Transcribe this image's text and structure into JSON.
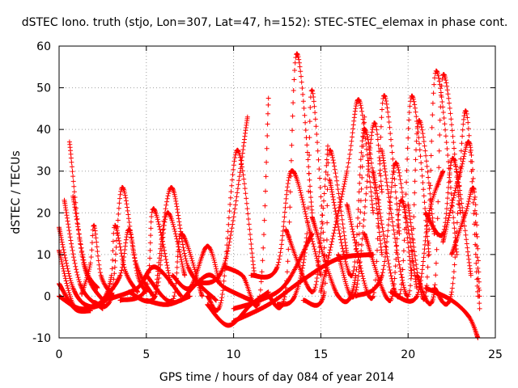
{
  "chart_data": {
    "type": "scatter",
    "title": "dSTEC Iono. truth (stjo, Lon=307, Lat=47, h=152): STEC-STEC_elemax in phase cont.",
    "xlabel": "GPS time / hours of day 084 of year 2014",
    "ylabel": "dSTEC  / TECUs",
    "xlim": [
      0,
      25
    ],
    "ylim": [
      -10,
      60
    ],
    "xticks": [
      0,
      5,
      10,
      15,
      20,
      25
    ],
    "yticks": [
      -10,
      0,
      10,
      20,
      30,
      40,
      50,
      60
    ],
    "grid": true,
    "marker": "+",
    "color": "#ff0000",
    "arcs": [
      {
        "x": [
          0.0,
          0.8,
          1.8,
          3.0
        ],
        "y": [
          16.5,
          2.0,
          -2.5,
          0.0
        ]
      },
      {
        "x": [
          0.0,
          0.8,
          1.6
        ],
        "y": [
          11.0,
          -2.0,
          -3.0
        ]
      },
      {
        "x": [
          0.0,
          0.9,
          1.8
        ],
        "y": [
          3.0,
          -3.0,
          -3.5
        ]
      },
      {
        "x": [
          0.0,
          1.2,
          2.5
        ],
        "y": [
          0.0,
          -3.0,
          -2.0
        ]
      },
      {
        "x": [
          0.3,
          1.2,
          2.5
        ],
        "y": [
          23.0,
          3.0,
          -3.0
        ]
      },
      {
        "x": [
          0.6,
          1.4,
          2.6
        ],
        "y": [
          37.0,
          8.0,
          -1.5
        ]
      },
      {
        "x": [
          0.8,
          1.5,
          2.2
        ],
        "y": [
          24.0,
          7.0,
          2.0
        ]
      },
      {
        "x": [
          1.3,
          1.8,
          2.0,
          2.4,
          3.1
        ],
        "y": [
          0.5,
          8.0,
          17.0,
          5.0,
          0.0
        ]
      },
      {
        "x": [
          1.5,
          2.5,
          3.0,
          3.2,
          3.8,
          4.5
        ],
        "y": [
          -3.0,
          -1.0,
          5.0,
          17.0,
          6.0,
          1.0
        ]
      },
      {
        "x": [
          2.0,
          3.0,
          3.6,
          4.4,
          5.4
        ],
        "y": [
          -1.5,
          0.0,
          26.0,
          8.0,
          0.0
        ]
      },
      {
        "x": [
          2.5,
          3.5,
          4.0,
          4.5,
          5.0
        ],
        "y": [
          -1.0,
          5.0,
          16.0,
          5.0,
          1.0
        ]
      },
      {
        "x": [
          3.0,
          4.5,
          5.5,
          7.0
        ],
        "y": [
          -0.5,
          2.0,
          7.0,
          0.0
        ]
      },
      {
        "x": [
          3.5,
          5.0,
          5.4,
          6.4
        ],
        "y": [
          -1.0,
          2.0,
          21.0,
          3.0
        ]
      },
      {
        "x": [
          4.0,
          5.5,
          6.2,
          7.2
        ],
        "y": [
          1.0,
          0.0,
          20.0,
          5.0
        ]
      },
      {
        "x": [
          5.0,
          6.5,
          7.0,
          8.2
        ],
        "y": [
          5.0,
          -1.0,
          15.0,
          0.0
        ]
      },
      {
        "x": [
          5.5,
          6.4,
          7.4,
          9.0
        ],
        "y": [
          0.0,
          26.0,
          7.0,
          -1.0
        ]
      },
      {
        "x": [
          5.0,
          6.2,
          7.5
        ],
        "y": [
          -1.0,
          -2.0,
          0.0
        ]
      },
      {
        "x": [
          6.5,
          7.5,
          8.5,
          9.2
        ],
        "y": [
          5.0,
          2.0,
          12.0,
          3.0
        ]
      },
      {
        "x": [
          7.0,
          8.5,
          9.5,
          11.0
        ],
        "y": [
          -1.0,
          5.0,
          2.0,
          -1.0
        ]
      },
      {
        "x": [
          8.5,
          9.3,
          10.2,
          11.2
        ],
        "y": [
          0.0,
          -1.0,
          35.0,
          5.0
        ]
      },
      {
        "x": [
          8.5,
          9.7,
          11.0,
          12.0
        ],
        "y": [
          -2.0,
          -7.0,
          -2.0,
          1.0
        ]
      },
      {
        "x": [
          8.0,
          9.5,
          10.8
        ],
        "y": [
          3.0,
          8.0,
          43.0
        ]
      },
      {
        "x": [
          9.5,
          10.5,
          11.5,
          12.0
        ],
        "y": [
          7.0,
          5.0,
          0.0,
          47.5
        ]
      },
      {
        "x": [
          10.0,
          11.5,
          13.0,
          14.5
        ],
        "y": [
          -3.0,
          -1.0,
          3.0,
          15.0
        ]
      },
      {
        "x": [
          10.0,
          12.0,
          14.0,
          16.0,
          18.0
        ],
        "y": [
          -6.0,
          -2.0,
          4.0,
          9.0,
          10.0
        ]
      },
      {
        "x": [
          11.0,
          12.5,
          13.3,
          14.4,
          15.0
        ],
        "y": [
          5.0,
          7.0,
          30.0,
          15.0,
          5.0
        ]
      },
      {
        "x": [
          12.0,
          13.0,
          13.6,
          14.5
        ],
        "y": [
          0.0,
          2.0,
          58.0,
          20.0
        ]
      },
      {
        "x": [
          12.5,
          13.5,
          14.2,
          14.5,
          15.3
        ],
        "y": [
          -2.0,
          0.0,
          15.0,
          49.5,
          5.0
        ]
      },
      {
        "x": [
          13.0,
          14.5,
          15.0,
          15.4
        ],
        "y": [
          16.0,
          1.0,
          15.0,
          36.0
        ]
      },
      {
        "x": [
          14.0,
          15.2,
          15.5,
          16.5
        ],
        "y": [
          -1.0,
          1.0,
          35.0,
          10.0
        ]
      },
      {
        "x": [
          14.5,
          16.0,
          17.0,
          17.5
        ],
        "y": [
          19.0,
          0.0,
          5.0,
          43.0
        ]
      },
      {
        "x": [
          15.0,
          16.5,
          17.2,
          18.0
        ],
        "y": [
          1.0,
          30.0,
          47.0,
          20.0
        ]
      },
      {
        "x": [
          15.5,
          16.8,
          17.5,
          18.5
        ],
        "y": [
          28.0,
          5.0,
          40.0,
          10.0
        ]
      },
      {
        "x": [
          16.0,
          17.0,
          18.0,
          18.5
        ],
        "y": [
          10.0,
          1.0,
          41.0,
          25.0
        ]
      },
      {
        "x": [
          16.5,
          18.0,
          18.6,
          19.5
        ],
        "y": [
          22.0,
          0.0,
          48.0,
          15.0
        ]
      },
      {
        "x": [
          17.0,
          18.5,
          19.3,
          20.2
        ],
        "y": [
          0.0,
          5.0,
          32.0,
          5.0
        ]
      },
      {
        "x": [
          17.5,
          19.0,
          19.6,
          20.5
        ],
        "y": [
          15.0,
          -1.0,
          23.0,
          2.0
        ]
      },
      {
        "x": [
          18.0,
          19.5,
          20.2,
          21.2
        ],
        "y": [
          30.0,
          0.0,
          48.0,
          10.0
        ]
      },
      {
        "x": [
          18.5,
          20.0,
          20.6,
          21.5
        ],
        "y": [
          35.0,
          0.0,
          42.0,
          15.0
        ]
      },
      {
        "x": [
          19.0,
          20.5,
          21.2,
          22.0
        ],
        "y": [
          1.0,
          0.0,
          20.0,
          30.0
        ]
      },
      {
        "x": [
          20.0,
          21.0,
          21.6,
          22.8
        ],
        "y": [
          22.0,
          0.0,
          54.0,
          10.0
        ]
      },
      {
        "x": [
          20.5,
          21.5,
          22.0,
          23.0
        ],
        "y": [
          5.0,
          1.0,
          53.0,
          20.0
        ]
      },
      {
        "x": [
          21.0,
          22.0,
          22.6,
          23.6
        ],
        "y": [
          20.0,
          15.0,
          33.0,
          5.0
        ]
      },
      {
        "x": [
          21.5,
          22.5,
          23.3,
          24.0
        ],
        "y": [
          2.0,
          1.0,
          44.5,
          0.0
        ]
      },
      {
        "x": [
          22.0,
          23.0,
          23.6,
          24.1
        ],
        "y": [
          13.0,
          30.0,
          35.0,
          -3.0
        ]
      },
      {
        "x": [
          22.5,
          23.3,
          23.8,
          24.1
        ],
        "y": [
          10.0,
          20.0,
          25.0,
          0.0
        ]
      },
      {
        "x": [
          21.0,
          22.5,
          23.5,
          24.0
        ],
        "y": [
          2.0,
          -1.0,
          -5.0,
          -10.0
        ]
      }
    ]
  }
}
